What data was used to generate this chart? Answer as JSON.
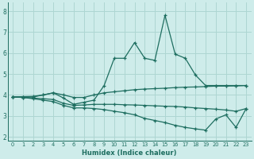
{
  "xlabel": "Humidex (Indice chaleur)",
  "xlim": [
    -0.5,
    23.5
  ],
  "ylim": [
    1.8,
    8.4
  ],
  "yticks": [
    2,
    3,
    4,
    5,
    6,
    7,
    8
  ],
  "bg_color": "#ceecea",
  "grid_color": "#aed6d2",
  "line_color": "#1e6e60",
  "lines": [
    [
      3.9,
      3.9,
      3.9,
      4.0,
      4.1,
      3.85,
      3.55,
      3.65,
      3.75,
      4.45,
      5.75,
      5.75,
      6.5,
      5.75,
      5.65,
      7.8,
      5.95,
      5.75,
      4.95,
      4.45,
      4.45,
      4.45,
      4.45,
      4.45
    ],
    [
      3.9,
      3.92,
      3.93,
      4.0,
      4.1,
      4.0,
      3.88,
      3.88,
      4.0,
      4.1,
      4.15,
      4.2,
      4.25,
      4.28,
      4.3,
      4.32,
      4.35,
      4.37,
      4.38,
      4.4,
      4.42,
      4.42,
      4.43,
      4.45
    ],
    [
      3.9,
      3.88,
      3.85,
      3.82,
      3.78,
      3.6,
      3.5,
      3.52,
      3.55,
      3.55,
      3.55,
      3.53,
      3.52,
      3.5,
      3.48,
      3.46,
      3.45,
      3.42,
      3.38,
      3.35,
      3.32,
      3.28,
      3.22,
      3.35
    ],
    [
      3.9,
      3.88,
      3.82,
      3.75,
      3.68,
      3.5,
      3.38,
      3.38,
      3.35,
      3.3,
      3.22,
      3.15,
      3.05,
      2.88,
      2.78,
      2.68,
      2.55,
      2.45,
      2.38,
      2.32,
      2.85,
      3.05,
      2.45,
      3.35
    ]
  ]
}
